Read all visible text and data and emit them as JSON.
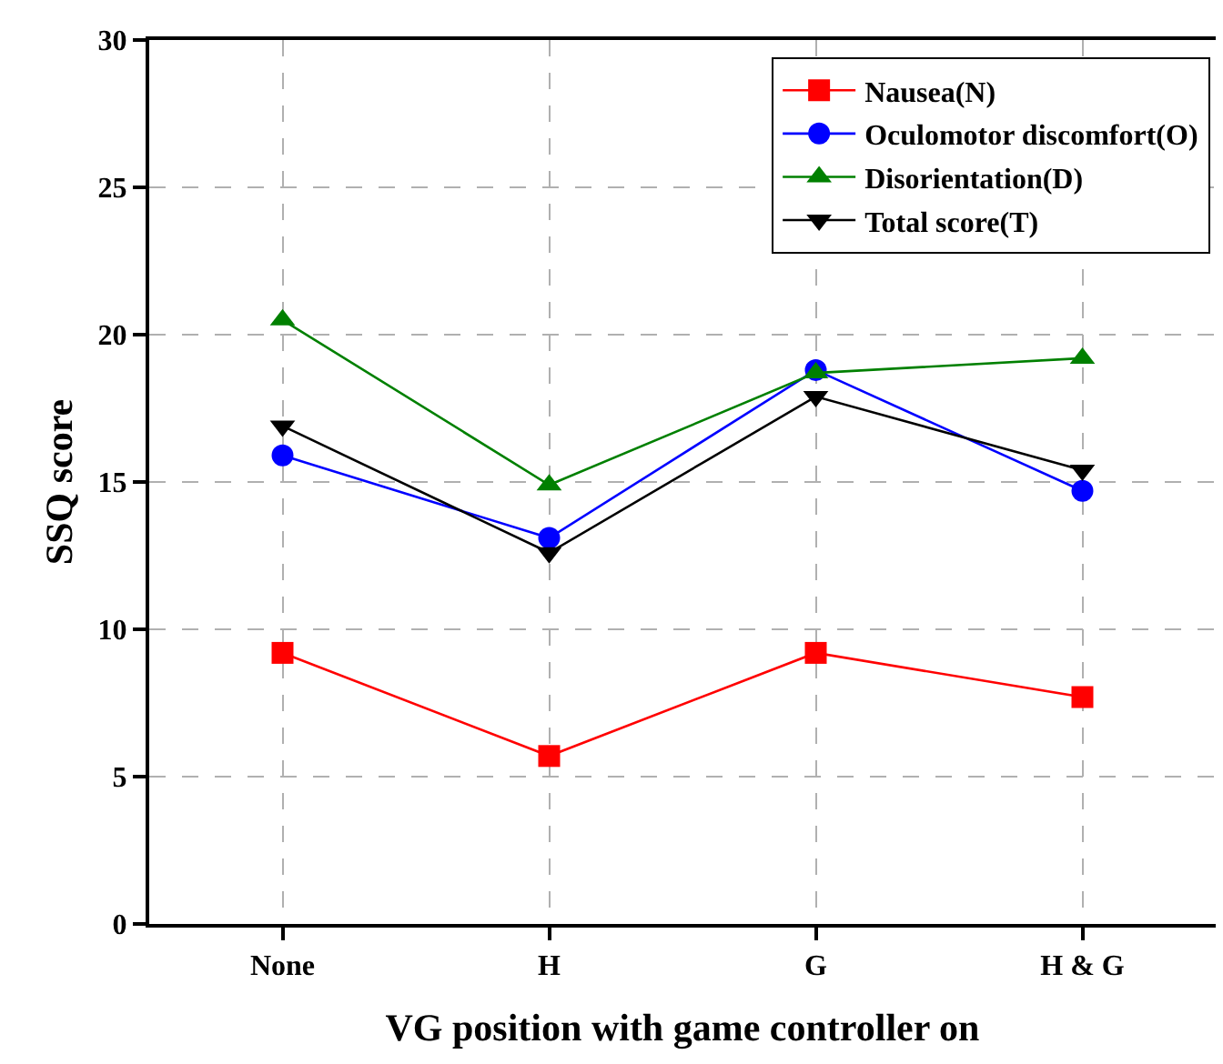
{
  "chart_data": {
    "type": "line",
    "xlabel": "VG position with game controller on",
    "ylabel": "SSQ score",
    "categories": [
      "None",
      "H",
      "G",
      "H & G"
    ],
    "series": [
      {
        "name": "Nausea(N)",
        "color": "#ff0000",
        "marker": "square",
        "values": [
          9.2,
          5.7,
          9.2,
          7.7
        ]
      },
      {
        "name": "Oculomotor discomfort(O)",
        "color": "#0000ff",
        "marker": "circle",
        "values": [
          15.9,
          13.1,
          18.8,
          14.7
        ]
      },
      {
        "name": "Disorientation(D)",
        "color": "#008000",
        "marker": "triangle",
        "values": [
          20.5,
          14.9,
          18.7,
          19.2
        ]
      },
      {
        "name": "Total score(T)",
        "color": "#000000",
        "marker": "triangle-down",
        "values": [
          16.9,
          12.6,
          17.9,
          15.4
        ]
      }
    ],
    "ylim": [
      0,
      30
    ],
    "yticks": [
      0,
      5,
      10,
      15,
      20,
      25,
      30
    ],
    "grid": true,
    "legend": "top right",
    "line_style": "solid"
  }
}
